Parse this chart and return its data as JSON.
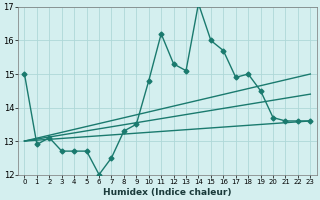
{
  "xlabel": "Humidex (Indice chaleur)",
  "ylabel": "",
  "xlim": [
    -0.5,
    23.5
  ],
  "ylim": [
    12,
    17
  ],
  "yticks": [
    12,
    13,
    14,
    15,
    16,
    17
  ],
  "xticks": [
    0,
    1,
    2,
    3,
    4,
    5,
    6,
    7,
    8,
    9,
    10,
    11,
    12,
    13,
    14,
    15,
    16,
    17,
    18,
    19,
    20,
    21,
    22,
    23
  ],
  "bg_color": "#d4efef",
  "grid_color": "#aed8d8",
  "line_color": "#1a7a6e",
  "main_series": {
    "x": [
      0,
      1,
      2,
      3,
      4,
      5,
      6,
      7,
      8,
      9,
      10,
      11,
      12,
      13,
      14,
      15,
      16,
      17,
      18,
      19,
      20,
      21,
      22,
      23
    ],
    "y": [
      15.0,
      12.9,
      13.1,
      12.7,
      12.7,
      12.7,
      12.0,
      12.5,
      13.3,
      13.5,
      14.8,
      16.2,
      15.3,
      15.1,
      17.1,
      16.0,
      15.7,
      14.9,
      15.0,
      14.5,
      13.7,
      13.6,
      13.6,
      13.6
    ]
  },
  "trend_lines": [
    {
      "x": [
        0,
        23
      ],
      "y": [
        13.0,
        15.0
      ]
    },
    {
      "x": [
        0,
        23
      ],
      "y": [
        13.0,
        14.4
      ]
    },
    {
      "x": [
        0,
        23
      ],
      "y": [
        13.0,
        13.6
      ]
    }
  ]
}
